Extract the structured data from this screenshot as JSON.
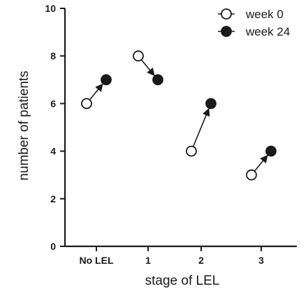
{
  "chart_data": {
    "type": "scatter",
    "title": "",
    "xlabel": "stage of LEL",
    "ylabel": "number of patients",
    "categories": [
      "No LEL",
      "1",
      "2",
      "3"
    ],
    "ylim": [
      0,
      10
    ],
    "yticks": [
      "0",
      "2",
      "4",
      "6",
      "8",
      "10"
    ],
    "grid": false,
    "legend_position": "top-right",
    "series": [
      {
        "name": "week 0",
        "marker": "open-circle",
        "values": [
          6,
          8,
          4,
          3
        ]
      },
      {
        "name": "week 24",
        "marker": "filled-circle",
        "values": [
          7,
          7,
          6,
          4
        ]
      }
    ],
    "annotations": "arrows point from week 0 value to week 24 value for each stage"
  }
}
